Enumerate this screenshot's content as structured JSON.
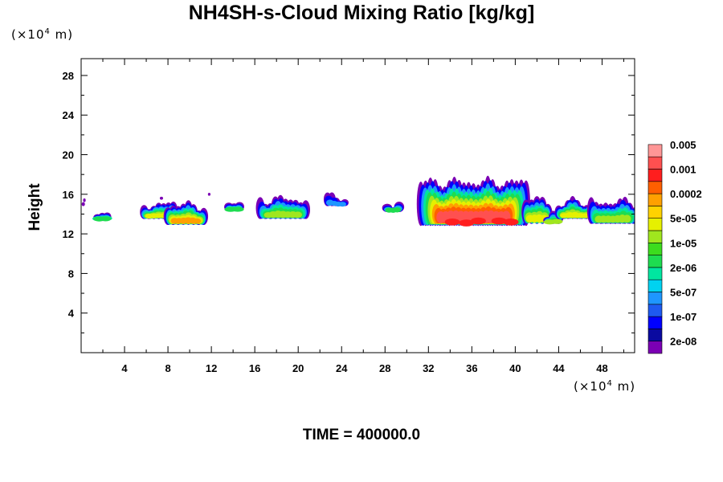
{
  "chart_data": {
    "type": "heatmap",
    "title": "NH4SH-s-Cloud Mixing Ratio [kg/kg]",
    "ylabel": "Height",
    "xlabel": "",
    "x_unit": {
      "prefix": "(×10",
      "exponent": "4",
      "suffix": " m)"
    },
    "y_unit": {
      "prefix": "(×10",
      "exponent": "4",
      "suffix": " m)"
    },
    "footer": "TIME = 400000.0",
    "xlim": [
      0,
      51
    ],
    "ylim": [
      0,
      29.7
    ],
    "x_ticks": [
      "4",
      "8",
      "12",
      "16",
      "20",
      "24",
      "28",
      "32",
      "36",
      "40",
      "44",
      "48"
    ],
    "y_ticks": [
      "4",
      "8",
      "12",
      "16",
      "20",
      "24",
      "28"
    ],
    "colorbar": {
      "colors": [
        "#7b00b4",
        "#0a0aa0",
        "#0000ff",
        "#1e5af0",
        "#1e96ff",
        "#00d2f0",
        "#00e6a0",
        "#1edc50",
        "#3cdc1e",
        "#a0e61e",
        "#e6f000",
        "#ffd200",
        "#ffa000",
        "#ff5f00",
        "#ff1e1e",
        "#ff5050",
        "#ff9696"
      ],
      "labels": [
        "2e-08",
        "1e-07",
        "5e-07",
        "2e-06",
        "1e-05",
        "5e-05",
        "0.0002",
        "0.001",
        "0.005"
      ]
    },
    "cloud_regions": [
      {
        "x_range": [
          1.5,
          2.4
        ],
        "height_range": [
          13.3,
          14.6
        ],
        "peak": "2e-06"
      },
      {
        "x_range": [
          5.8,
          8.5
        ],
        "height_range": [
          13.5,
          15.5
        ],
        "peak": "5e-05"
      },
      {
        "x_range": [
          8.0,
          11.3
        ],
        "height_range": [
          12.9,
          15.6
        ],
        "peak": "0.0002"
      },
      {
        "x_range": [
          13.6,
          14.6
        ],
        "height_range": [
          14.3,
          15.2
        ],
        "peak": "2e-06"
      },
      {
        "x_range": [
          16.5,
          20.7
        ],
        "height_range": [
          13.5,
          16.2
        ],
        "peak": "1e-05"
      },
      {
        "x_range": [
          22.7,
          24.3
        ],
        "height_range": [
          14.8,
          16.0
        ],
        "peak": "5e-07"
      },
      {
        "x_range": [
          28.2,
          29.3
        ],
        "height_range": [
          14.2,
          15.5
        ],
        "peak": "2e-06"
      },
      {
        "x_range": [
          31.3,
          41.0
        ],
        "height_range": [
          12.8,
          18.8
        ],
        "peak": "0.005"
      },
      {
        "x_range": [
          41.0,
          43.0
        ],
        "height_range": [
          13.0,
          16.3
        ],
        "peak": "5e-05"
      },
      {
        "x_range": [
          43.0,
          44.0
        ],
        "height_range": [
          13.0,
          14.2
        ],
        "peak": "1e-05"
      },
      {
        "x_range": [
          44.0,
          47.0
        ],
        "height_range": [
          13.5,
          15.8
        ],
        "peak": "5e-05"
      },
      {
        "x_range": [
          47.0,
          51.0
        ],
        "height_range": [
          13.0,
          16.0
        ],
        "peak": "1e-05"
      }
    ]
  }
}
